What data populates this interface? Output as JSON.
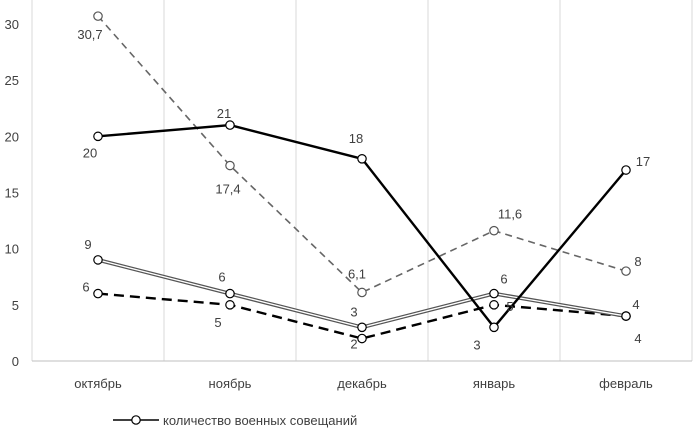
{
  "chart_data": {
    "type": "line",
    "categories": [
      "октябрь",
      "ноябрь",
      "декабрь",
      "январь",
      "февраль"
    ],
    "ylim": [
      0,
      30
    ],
    "yticks": [
      "0",
      "5",
      "10",
      "15",
      "20",
      "25",
      "30"
    ],
    "grid": "vertical",
    "legend_position": "bottom-left",
    "legend_entries": [
      "количество военных совещаний"
    ],
    "series": [
      {
        "name": "количество военных совещаний",
        "style": "solid-thick",
        "color": "#000000",
        "values": [
          20,
          21,
          18,
          3,
          17
        ],
        "labels": [
          "20",
          "21",
          "18",
          "3",
          "17"
        ]
      },
      {
        "style": "dashed-gray",
        "color": "#666666",
        "values": [
          30.7,
          17.4,
          6.1,
          11.6,
          8
        ],
        "labels": [
          "30,7",
          "17,4",
          "6,1",
          "11,6",
          "8"
        ]
      },
      {
        "style": "double-gray",
        "color": "#555555",
        "values": [
          9,
          6,
          3,
          6,
          4
        ],
        "labels": [
          "9",
          "6",
          "3",
          "6",
          "4"
        ]
      },
      {
        "style": "dashed-thick",
        "color": "#000000",
        "values": [
          6,
          5,
          2,
          5,
          4
        ],
        "labels": [
          "6",
          "5",
          "2",
          "5",
          "4"
        ]
      }
    ]
  }
}
